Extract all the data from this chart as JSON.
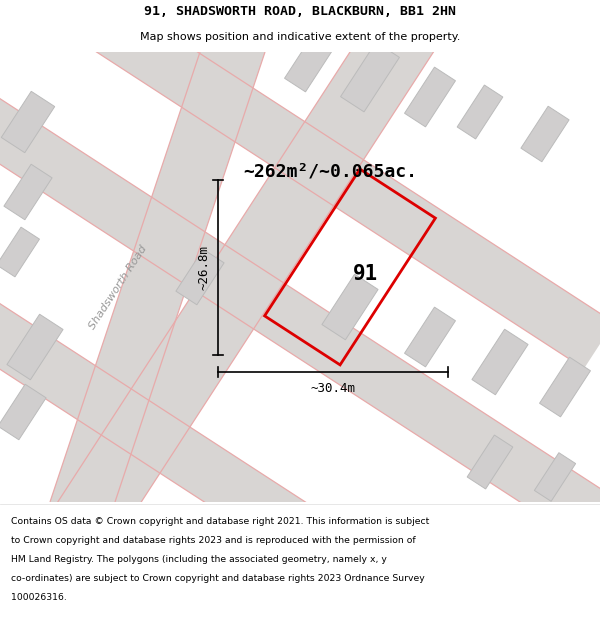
{
  "title_line1": "91, SHADSWORTH ROAD, BLACKBURN, BB1 2HN",
  "title_line2": "Map shows position and indicative extent of the property.",
  "area_text": "~262m²/~0.065ac.",
  "label_91": "91",
  "dim_height": "~26.8m",
  "dim_width": "~30.4m",
  "road_label": "Shadsworth Road",
  "footer_lines": [
    "Contains OS data © Crown copyright and database right 2021. This information is subject",
    "to Crown copyright and database rights 2023 and is reproduced with the permission of",
    "HM Land Registry. The polygons (including the associated geometry, namely x, y",
    "co-ordinates) are subject to Crown copyright and database rights 2023 Ordnance Survey",
    "100026316."
  ],
  "bg_color": "#efefef",
  "road_fill": "#d8d5d3",
  "building_fill": "#d0cece",
  "red_line_color": "#dd0000",
  "pink_line_color": "#e8aaaa",
  "white": "#ffffff"
}
